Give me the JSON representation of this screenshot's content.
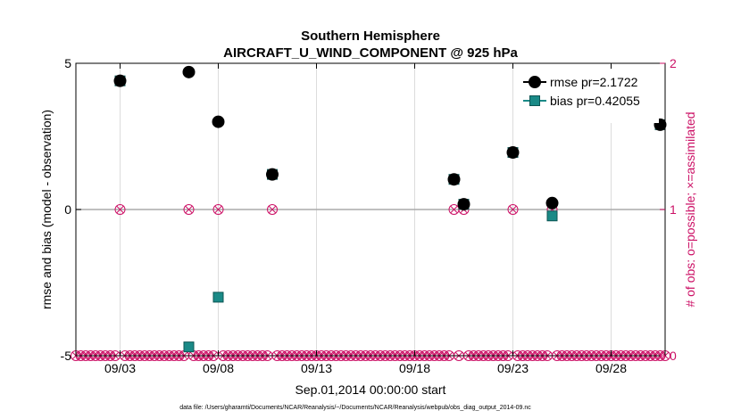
{
  "chart_data": {
    "type": "scatter",
    "title": "Southern Hemisphere",
    "subtitle": "AIRCRAFT_U_WIND_COMPONENT @ 925 hPa",
    "xlabel": "Sep.01,2014 00:00:00 start",
    "ylabel": "rmse and bias (model - observation)",
    "y2label": "# of obs: o=possible; ×=assimilated",
    "footnote": "data file: /Users/gharamti/Documents/NCAR/Reanalysis/~/Documents/NCAR/Reanalysis/webpub/obs_diag_output_2014-09.nc",
    "xlim": [
      1,
      31
    ],
    "ylim": [
      -5,
      5
    ],
    "y2lim": [
      0,
      2
    ],
    "x_ticks": [
      3.25,
      8.25,
      13.25,
      18.25,
      23.25,
      28.25
    ],
    "x_tick_labels": [
      "09/03",
      "09/08",
      "09/13",
      "09/18",
      "09/23",
      "09/28"
    ],
    "y_ticks": [
      -5,
      0,
      5
    ],
    "y_tick_labels": [
      "-5",
      "0",
      "5"
    ],
    "y2_ticks": [
      0,
      1,
      2
    ],
    "y2_tick_labels": [
      "0",
      "1",
      "2"
    ],
    "legend_position": "top-right",
    "grid": true,
    "series": [
      {
        "name": "rmse",
        "legend_label": "rmse pr=2.1722",
        "color": "#000000",
        "marker": "circle",
        "x": [
          3.25,
          6.75,
          8.25,
          11.0,
          20.25,
          20.75,
          23.25,
          25.25,
          30.75
        ],
        "y": [
          4.4,
          4.7,
          3.0,
          1.2,
          1.03,
          0.18,
          1.95,
          0.22,
          2.9
        ]
      },
      {
        "name": "bias",
        "legend_label": "bias pr=0.42055",
        "color": "#1a8a87",
        "marker": "square",
        "x": [
          3.25,
          6.75,
          8.25,
          11.0,
          20.25,
          20.75,
          23.25,
          25.25,
          30.75
        ],
        "y": [
          4.4,
          -4.7,
          -3.0,
          1.2,
          1.03,
          0.18,
          1.95,
          -0.22,
          2.9
        ]
      }
    ],
    "obs_count": {
      "color": "#cc1166",
      "x_possible_one": [
        3.25,
        6.75,
        8.25,
        11.0,
        20.25,
        20.75,
        23.25,
        25.25
      ],
      "value_one": 1,
      "x_start": 1.0,
      "x_end": 31.0,
      "x_step": 0.25,
      "value_zero": 0
    }
  }
}
